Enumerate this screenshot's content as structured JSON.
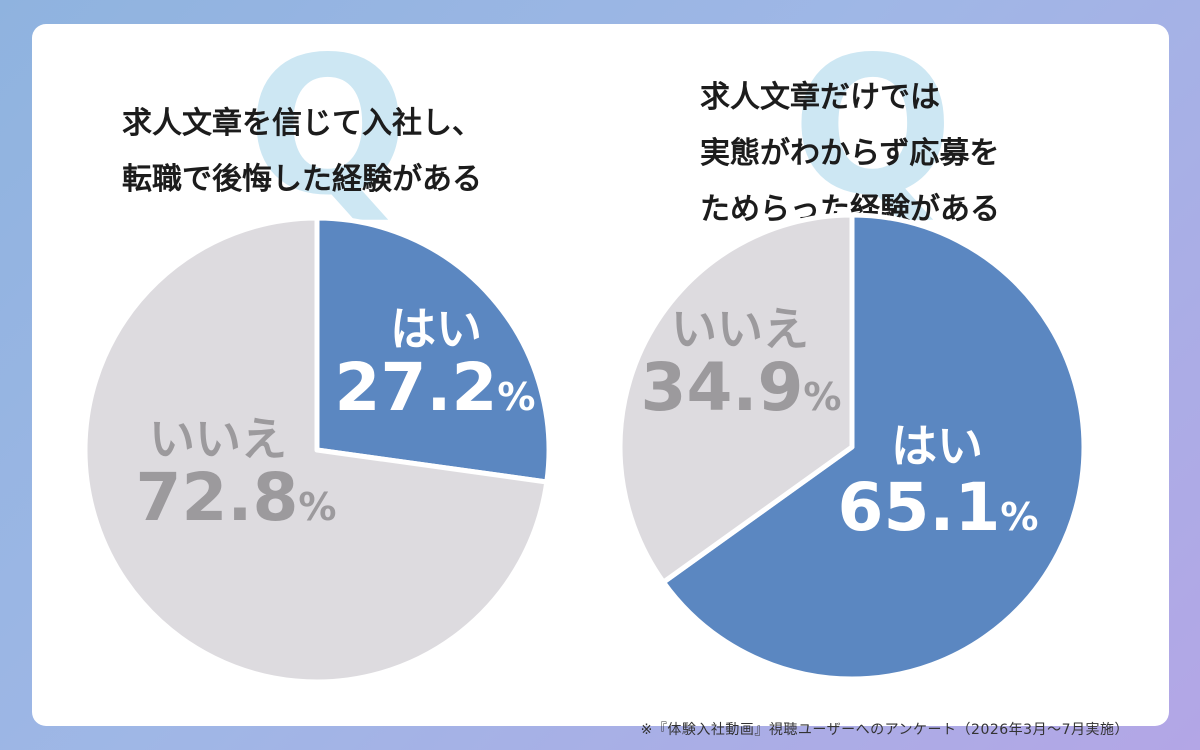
{
  "questions": [
    {
      "q_mark": "Q",
      "title": "求人文章を信じて入社し、\n転職で後悔した経験がある"
    },
    {
      "q_mark": "Q",
      "title": "求人文章だけでは\n実態がわからず応募を\nためらった経験がある"
    }
  ],
  "footnote": "※『体験入社動画』視聴ユーザーへのアンケート（2026年3月〜7月実施）",
  "colors": {
    "yes": "#5b87c1",
    "no": "#dddbdf",
    "yes_text": "#ffffff",
    "no_text": "#9c9a9d"
  },
  "chart_data": [
    {
      "type": "pie",
      "title": "求人文章を信じて入社し、転職で後悔した経験がある",
      "slices": [
        {
          "label": "はい",
          "value": 27.2,
          "display": "27.2%"
        },
        {
          "label": "いいえ",
          "value": 72.8,
          "display": "72.8%"
        }
      ]
    },
    {
      "type": "pie",
      "title": "求人文章だけでは実態がわからず応募をためらった経験がある",
      "slices": [
        {
          "label": "はい",
          "value": 65.1,
          "display": "65.1%"
        },
        {
          "label": "いいえ",
          "value": 34.9,
          "display": "34.9%"
        }
      ]
    }
  ]
}
